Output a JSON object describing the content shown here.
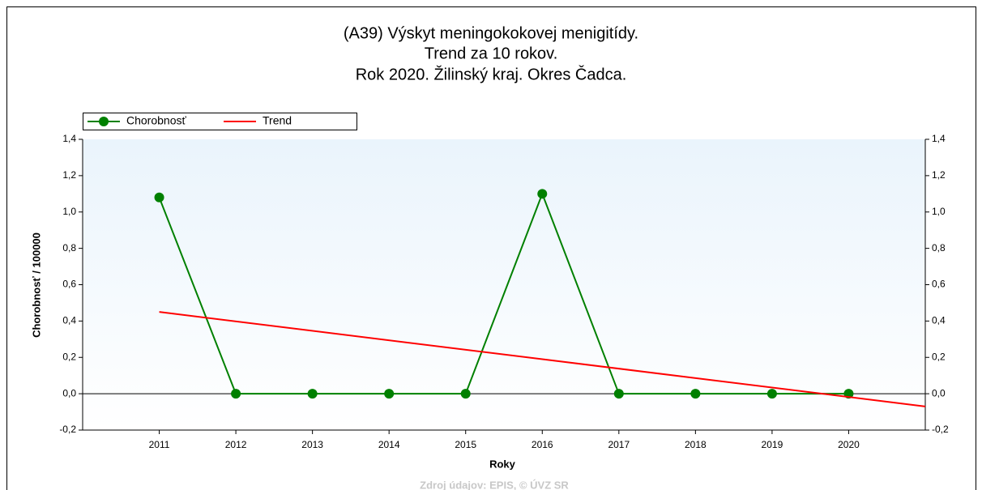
{
  "chart_data": {
    "type": "line",
    "title": [
      "(A39) Výskyt meningokokovej menigitídy.",
      "Trend za 10 rokov.",
      "Rok 2020. Žilinský kraj. Okres Čadca."
    ],
    "x_label": "Roky",
    "y_label": "Chorobnosť / 100000",
    "source": "Zdroj údajov: EPIS, © ÚVZ SR",
    "x": [
      2011,
      2012,
      2013,
      2014,
      2015,
      2016,
      2017,
      2018,
      2019,
      2020
    ],
    "series": [
      {
        "name": "Chorobnosť",
        "color": "#008000",
        "values": [
          1.08,
          0,
          0,
          0,
          0,
          1.1,
          0,
          0,
          0,
          0
        ]
      },
      {
        "name": "Trend",
        "color": "#ff0000",
        "x": [
          2011,
          2021
        ],
        "values": [
          0.45,
          -0.07
        ]
      }
    ],
    "xlim": [
      2010,
      2021
    ],
    "xticks": [
      2011,
      2012,
      2013,
      2014,
      2015,
      2016,
      2017,
      2018,
      2019,
      2020
    ],
    "ylim": [
      -0.2,
      1.4
    ],
    "yticks": [
      {
        "value": -0.2,
        "label": "-0,2"
      },
      {
        "value": 0,
        "label": "0,0"
      },
      {
        "value": 0.2,
        "label": "0,2"
      },
      {
        "value": 0.4,
        "label": "0,4"
      },
      {
        "value": 0.6,
        "label": "0,6"
      },
      {
        "value": 0.8,
        "label": "0,8"
      },
      {
        "value": 1.0,
        "label": "1,0"
      },
      {
        "value": 1.2,
        "label": "1,2"
      },
      {
        "value": 1.4,
        "label": "1,4"
      }
    ],
    "legend": "top-left"
  }
}
